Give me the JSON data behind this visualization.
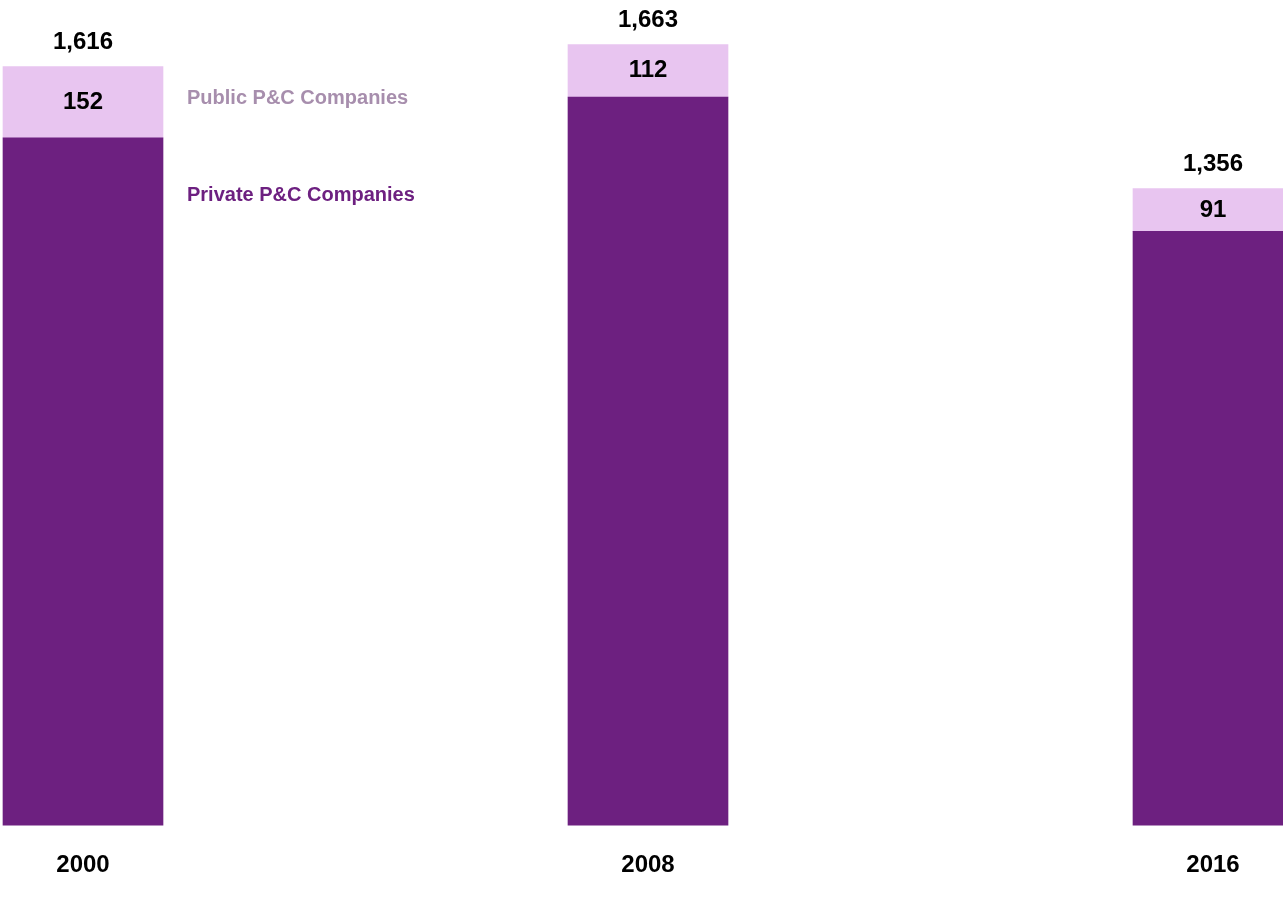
{
  "chart_data": {
    "type": "bar",
    "stacked": true,
    "categories": [
      "2000",
      "2008",
      "2016"
    ],
    "series": [
      {
        "name": "Private P&C Companies",
        "color": "#6d2080",
        "values": [
          1464,
          1551,
          1265
        ]
      },
      {
        "name": "Public P&C Companies",
        "color": "#e8c5f0",
        "values": [
          152,
          112,
          91
        ],
        "value_labels": [
          "152",
          "112",
          "91"
        ]
      }
    ],
    "totals": [
      "1,616",
      "1,663",
      "1,356"
    ]
  }
}
